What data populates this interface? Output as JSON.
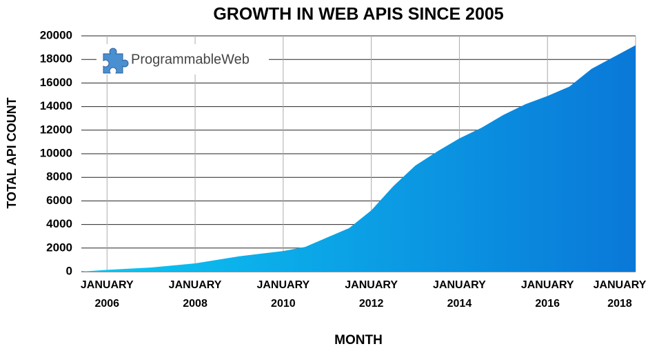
{
  "chart_data": {
    "type": "area",
    "title": "GROWTH IN WEB APIS SINCE 2005",
    "xlabel": "MONTH",
    "ylabel": "TOTAL API COUNT",
    "watermark": "ProgrammableWeb",
    "x": [
      "2005-06",
      "2006-01",
      "2007-01",
      "2008-01",
      "2009-01",
      "2010-01",
      "2010-07",
      "2011-01",
      "2011-07",
      "2012-01",
      "2012-07",
      "2013-01",
      "2013-07",
      "2014-01",
      "2014-07",
      "2015-01",
      "2015-07",
      "2016-01",
      "2016-07",
      "2017-01",
      "2017-07",
      "2018-01"
    ],
    "values": [
      0,
      150,
      350,
      700,
      1300,
      1750,
      2100,
      2900,
      3700,
      5200,
      7250,
      9000,
      10200,
      11300,
      12200,
      13300,
      14200,
      14900,
      15700,
      17200,
      18200,
      19200
    ],
    "colors": [
      "#0cc8f2",
      "#0a78d8"
    ],
    "xlim": [
      "2005-06",
      "2018-01"
    ],
    "xticks": [
      {
        "value": "2006-01",
        "label": "JANUARY 2006"
      },
      {
        "value": "2008-01",
        "label": "JANUARY 2008"
      },
      {
        "value": "2010-01",
        "label": "JANUARY 2010"
      },
      {
        "value": "2012-01",
        "label": "JANUARY 2012"
      },
      {
        "value": "2014-01",
        "label": "JANUARY 2014"
      },
      {
        "value": "2016-01",
        "label": "JANUARY 2016"
      },
      {
        "value": "2018-01",
        "label": "JANUARY 2018"
      }
    ],
    "ylim": [
      0,
      20000
    ],
    "yticks": [
      0,
      2000,
      4000,
      6000,
      8000,
      10000,
      12000,
      14000,
      16000,
      18000,
      20000
    ],
    "grid": true
  }
}
